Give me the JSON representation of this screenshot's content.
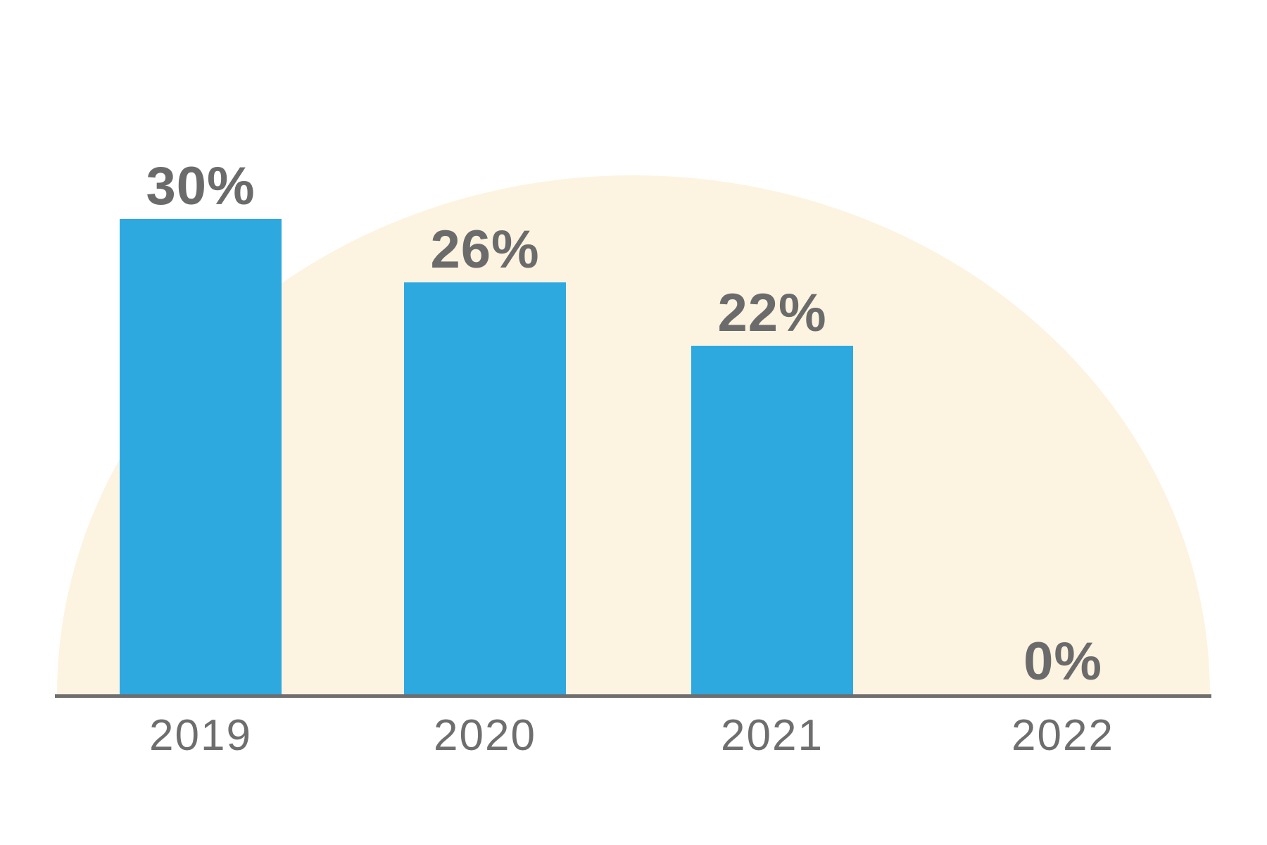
{
  "chart_data": {
    "type": "bar",
    "title": "",
    "xlabel": "",
    "ylabel": "",
    "categories": [
      "2019",
      "2020",
      "2021",
      "2022"
    ],
    "values": [
      30,
      26,
      22,
      0
    ],
    "value_labels": [
      "30%",
      "26%",
      "22%",
      "0%"
    ],
    "unit": "%",
    "ylim": [
      0,
      30
    ],
    "grid": false,
    "legend": "none",
    "colors": {
      "bar": "#2EA9E0",
      "dome_background": "#FCF4E1",
      "axis": "#6E6E6E",
      "value_label": "#6B6B6B",
      "category_label": "#6E6E6E",
      "page_background": "#FFFFFF"
    }
  }
}
